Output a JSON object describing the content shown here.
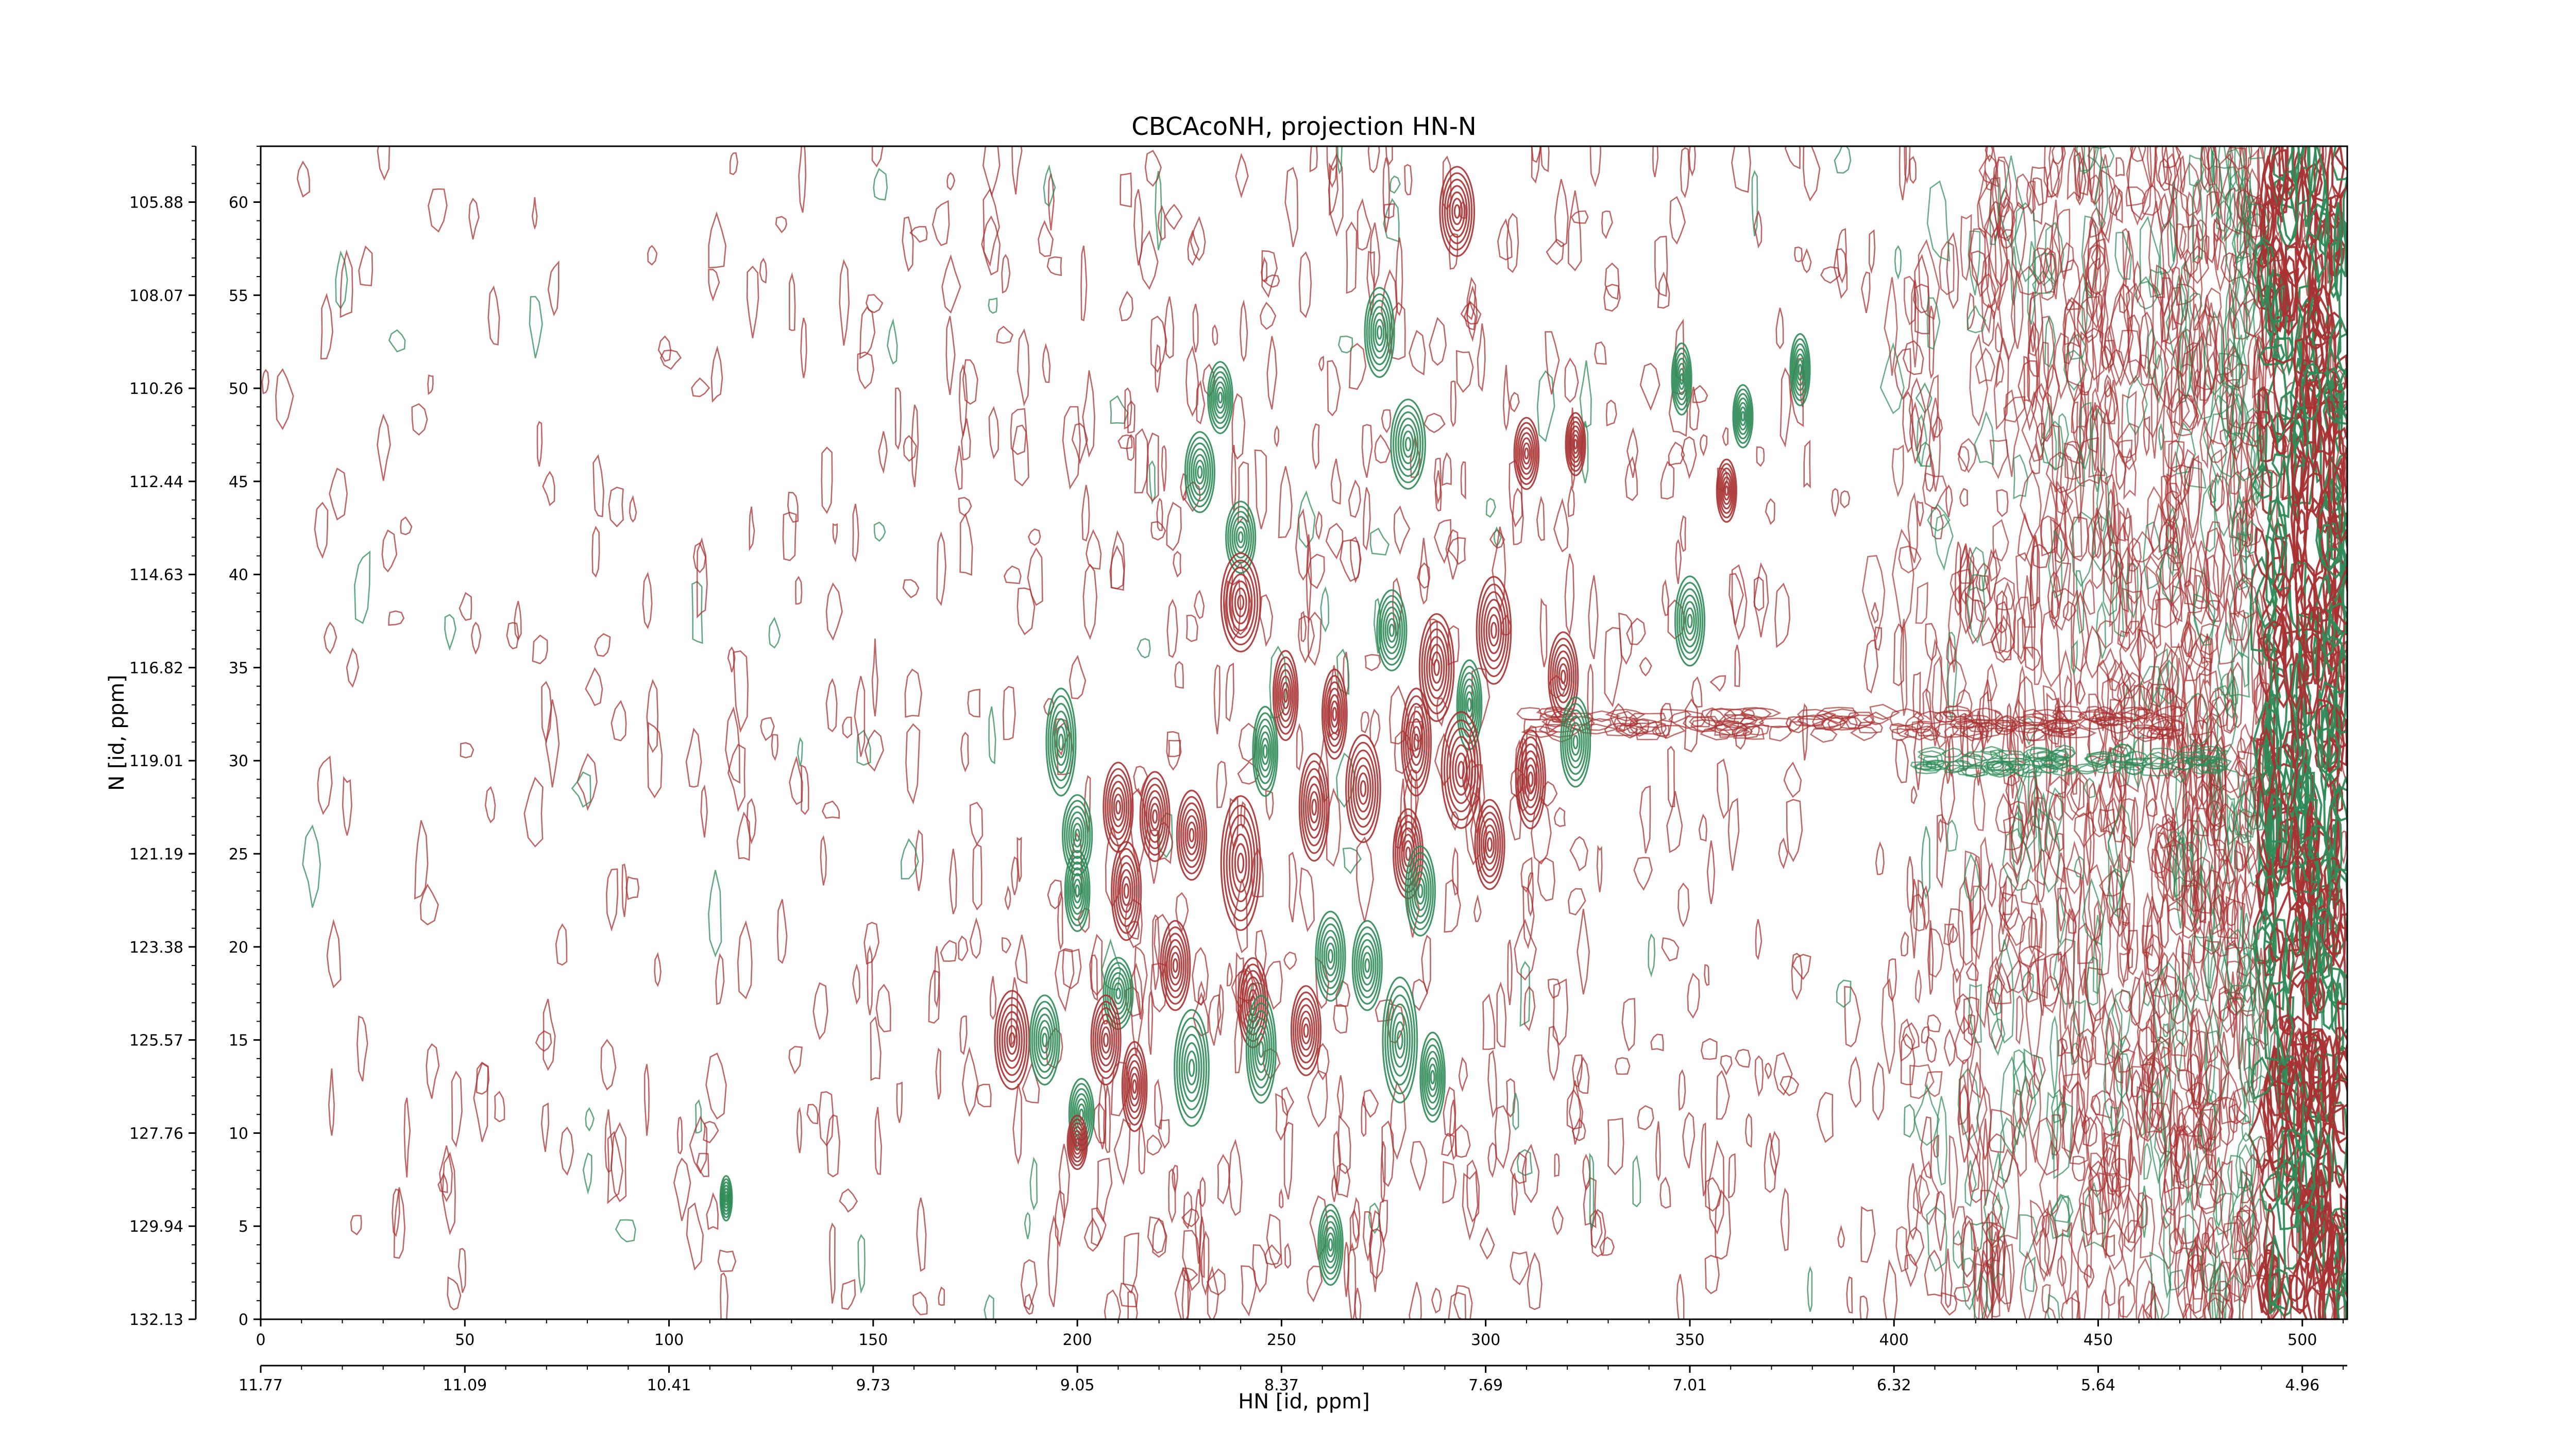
{
  "chart_data": {
    "type": "contour",
    "title": "CBCAcoNH, projection HN-N",
    "xlabel": "HN [id, ppm]",
    "ylabel": "N [id, ppm]",
    "xlim": [
      0,
      511
    ],
    "ylim": [
      0,
      63
    ],
    "x_index_ticks": [
      "0",
      "50",
      "100",
      "150",
      "200",
      "250",
      "300",
      "350",
      "400",
      "450",
      "500"
    ],
    "x_ppm_ticks": [
      "11.77",
      "11.09",
      "10.41",
      "9.73",
      "9.05",
      "8.37",
      "7.69",
      "7.01",
      "6.32",
      "5.64",
      "4.96"
    ],
    "y_index_ticks": [
      "0",
      "5",
      "10",
      "15",
      "20",
      "25",
      "30",
      "35",
      "40",
      "45",
      "50",
      "55",
      "60"
    ],
    "y_ppm_ticks": [
      "132.13",
      "129.94",
      "127.76",
      "125.57",
      "123.38",
      "121.19",
      "119.01",
      "116.82",
      "114.63",
      "112.44",
      "110.26",
      "108.07",
      "105.88"
    ],
    "grid": false,
    "colors": {
      "positive": "#a83232",
      "negative": "#2e8b57"
    },
    "peaks": [
      {
        "x": 293,
        "y": 59.5,
        "sign": "positive",
        "w": 3.5,
        "h": 2.0
      },
      {
        "x": 274,
        "y": 53,
        "sign": "negative",
        "w": 3.0,
        "h": 2.0
      },
      {
        "x": 235,
        "y": 49.5,
        "sign": "negative",
        "w": 2.5,
        "h": 1.6
      },
      {
        "x": 281,
        "y": 47,
        "sign": "negative",
        "w": 3.5,
        "h": 2.0
      },
      {
        "x": 230,
        "y": 45.5,
        "sign": "negative",
        "w": 3.0,
        "h": 1.8
      },
      {
        "x": 348,
        "y": 50.5,
        "sign": "negative",
        "w": 2.0,
        "h": 1.6
      },
      {
        "x": 363,
        "y": 48.5,
        "sign": "negative",
        "w": 2.0,
        "h": 1.4
      },
      {
        "x": 377,
        "y": 51,
        "sign": "negative",
        "w": 2.0,
        "h": 1.6
      },
      {
        "x": 359,
        "y": 44.5,
        "sign": "positive",
        "w": 2.0,
        "h": 1.4
      },
      {
        "x": 310,
        "y": 46.5,
        "sign": "positive",
        "w": 2.5,
        "h": 1.6
      },
      {
        "x": 322,
        "y": 47,
        "sign": "positive",
        "w": 2.0,
        "h": 1.4
      },
      {
        "x": 240,
        "y": 42,
        "sign": "negative",
        "w": 3.0,
        "h": 1.6
      },
      {
        "x": 240,
        "y": 38.5,
        "sign": "positive",
        "w": 4.0,
        "h": 2.2
      },
      {
        "x": 302,
        "y": 37,
        "sign": "positive",
        "w": 3.5,
        "h": 2.4
      },
      {
        "x": 350,
        "y": 37.5,
        "sign": "negative",
        "w": 3.0,
        "h": 2.0
      },
      {
        "x": 277,
        "y": 37,
        "sign": "negative",
        "w": 3.0,
        "h": 1.8
      },
      {
        "x": 288,
        "y": 35,
        "sign": "positive",
        "w": 3.5,
        "h": 2.4
      },
      {
        "x": 319,
        "y": 34.5,
        "sign": "positive",
        "w": 3.0,
        "h": 2.0
      },
      {
        "x": 296,
        "y": 33,
        "sign": "negative",
        "w": 2.5,
        "h": 2.0
      },
      {
        "x": 251,
        "y": 33.5,
        "sign": "positive",
        "w": 2.5,
        "h": 2.0
      },
      {
        "x": 263,
        "y": 32.5,
        "sign": "positive",
        "w": 2.5,
        "h": 2.0
      },
      {
        "x": 322,
        "y": 31,
        "sign": "negative",
        "w": 3.0,
        "h": 2.0
      },
      {
        "x": 283,
        "y": 31,
        "sign": "positive",
        "w": 3.0,
        "h": 2.4
      },
      {
        "x": 246,
        "y": 30.5,
        "sign": "negative",
        "w": 2.5,
        "h": 2.0
      },
      {
        "x": 294,
        "y": 29.5,
        "sign": "positive",
        "w": 4.0,
        "h": 2.6
      },
      {
        "x": 311,
        "y": 29,
        "sign": "positive",
        "w": 3.0,
        "h": 2.2
      },
      {
        "x": 196,
        "y": 31,
        "sign": "negative",
        "w": 3.0,
        "h": 2.4
      },
      {
        "x": 270,
        "y": 28.5,
        "sign": "positive",
        "w": 3.5,
        "h": 2.4
      },
      {
        "x": 258,
        "y": 27.5,
        "sign": "positive",
        "w": 3.0,
        "h": 2.4
      },
      {
        "x": 210,
        "y": 27.5,
        "sign": "positive",
        "w": 3.0,
        "h": 2.0
      },
      {
        "x": 219,
        "y": 27,
        "sign": "positive",
        "w": 3.0,
        "h": 2.0
      },
      {
        "x": 200,
        "y": 26,
        "sign": "negative",
        "w": 3.0,
        "h": 1.8
      },
      {
        "x": 228,
        "y": 26,
        "sign": "positive",
        "w": 3.0,
        "h": 2.0
      },
      {
        "x": 240,
        "y": 24.5,
        "sign": "positive",
        "w": 4.0,
        "h": 3.0
      },
      {
        "x": 281,
        "y": 25,
        "sign": "positive",
        "w": 3.0,
        "h": 2.0
      },
      {
        "x": 301,
        "y": 25.5,
        "sign": "positive",
        "w": 3.0,
        "h": 2.0
      },
      {
        "x": 212,
        "y": 23,
        "sign": "positive",
        "w": 3.0,
        "h": 2.2
      },
      {
        "x": 200,
        "y": 23,
        "sign": "negative",
        "w": 2.5,
        "h": 1.8
      },
      {
        "x": 284,
        "y": 23,
        "sign": "negative",
        "w": 3.0,
        "h": 2.0
      },
      {
        "x": 262,
        "y": 19.5,
        "sign": "negative",
        "w": 3.0,
        "h": 2.0
      },
      {
        "x": 271,
        "y": 19,
        "sign": "negative",
        "w": 3.0,
        "h": 2.0
      },
      {
        "x": 224,
        "y": 19,
        "sign": "positive",
        "w": 3.0,
        "h": 2.0
      },
      {
        "x": 210,
        "y": 17.5,
        "sign": "negative",
        "w": 3.0,
        "h": 1.6
      },
      {
        "x": 243,
        "y": 17,
        "sign": "positive",
        "w": 3.0,
        "h": 2.0
      },
      {
        "x": 184,
        "y": 15,
        "sign": "positive",
        "w": 3.5,
        "h": 2.2
      },
      {
        "x": 192,
        "y": 15,
        "sign": "negative",
        "w": 3.0,
        "h": 2.0
      },
      {
        "x": 207,
        "y": 15,
        "sign": "positive",
        "w": 3.0,
        "h": 2.0
      },
      {
        "x": 228,
        "y": 13.5,
        "sign": "negative",
        "w": 3.5,
        "h": 2.6
      },
      {
        "x": 245,
        "y": 14.5,
        "sign": "negative",
        "w": 3.0,
        "h": 2.4
      },
      {
        "x": 256,
        "y": 15.5,
        "sign": "positive",
        "w": 3.0,
        "h": 2.0
      },
      {
        "x": 279,
        "y": 15,
        "sign": "negative",
        "w": 3.5,
        "h": 2.8
      },
      {
        "x": 287,
        "y": 13,
        "sign": "negative",
        "w": 2.5,
        "h": 2.0
      },
      {
        "x": 214,
        "y": 12.5,
        "sign": "positive",
        "w": 2.5,
        "h": 2.0
      },
      {
        "x": 201,
        "y": 11,
        "sign": "negative",
        "w": 2.5,
        "h": 1.6
      },
      {
        "x": 200,
        "y": 9.5,
        "sign": "positive",
        "w": 2.0,
        "h": 1.2
      },
      {
        "x": 114,
        "y": 6.5,
        "sign": "negative",
        "w": 1.2,
        "h": 1.0
      },
      {
        "x": 262,
        "y": 4,
        "sign": "negative",
        "w": 2.5,
        "h": 1.8
      }
    ]
  }
}
